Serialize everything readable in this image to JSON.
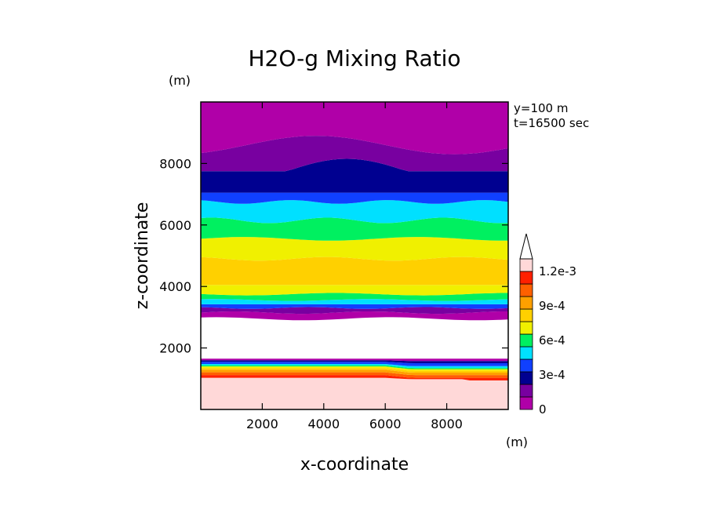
{
  "chart_data": {
    "type": "heatmap",
    "title": "H2O-g Mixing Ratio",
    "xlabel": "x-coordinate",
    "ylabel": "z-coordinate",
    "x_unit": "(m)",
    "y_unit": "(m)",
    "xlim": [
      0,
      10000
    ],
    "ylim": [
      0,
      10000
    ],
    "xticks": [
      "2000",
      "4000",
      "6000",
      "8000"
    ],
    "yticks": [
      "2000",
      "4000",
      "6000",
      "8000"
    ],
    "annotations": [
      "y=100 m",
      "t=16500 sec"
    ],
    "colorbar": {
      "labels": [
        "0",
        "3e-4",
        "6e-4",
        "9e-4",
        "1.2e-3"
      ],
      "label_values": [
        0,
        0.0003,
        0.0006,
        0.0009,
        0.0012
      ],
      "levels": [
        0,
        0.0001,
        0.0002,
        0.0003,
        0.0004,
        0.0005,
        0.0006,
        0.0007,
        0.0008,
        0.0009,
        0.001,
        0.0011,
        0.0012
      ],
      "colors": [
        "#b000a8",
        "#7800a0",
        "#000090",
        "#1040ff",
        "#00e0ff",
        "#00f060",
        "#f0f000",
        "#ffd000",
        "#ffa000",
        "#ff6000",
        "#ff2000",
        "#ffd8d8"
      ],
      "extend": "max"
    },
    "layers": [
      {
        "zmin": 0,
        "zmax": 1000,
        "value": 0.00125
      },
      {
        "zmin": 1000,
        "zmax": 1500,
        "value": "0.0003-0.0012 (graded)"
      },
      {
        "zmin": 1500,
        "zmax": 2900,
        "value": "below 0"
      },
      {
        "zmin": 2900,
        "zmax": 3400,
        "value": 5e-05
      },
      {
        "zmin": 3400,
        "zmax": 6100,
        "value": "0.0003-0.0008"
      },
      {
        "zmin": 6100,
        "zmax": 7000,
        "value": "0.0003-0.0005"
      },
      {
        "zmin": 7000,
        "zmax": 8200,
        "value": 0.00025
      },
      {
        "zmin": 8200,
        "zmax": 10000,
        "value": "0-0.0001"
      }
    ]
  }
}
